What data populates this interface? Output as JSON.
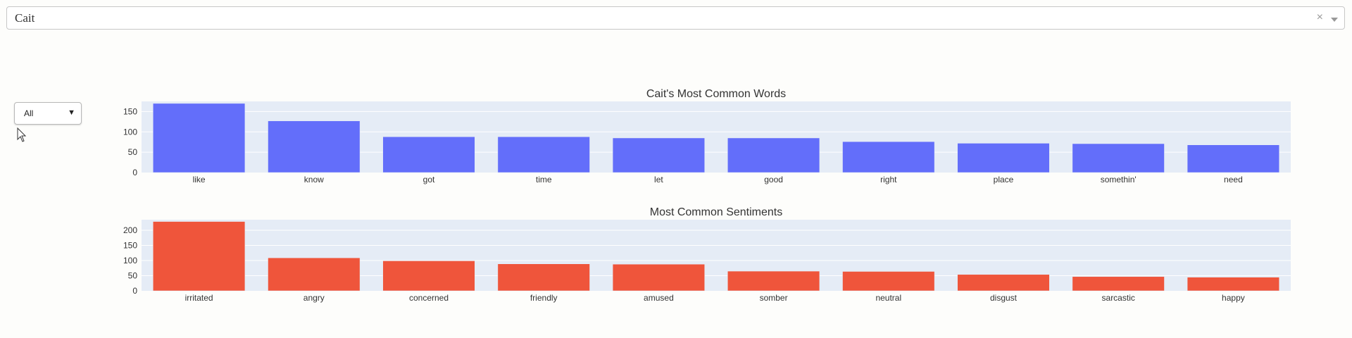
{
  "character_select": {
    "value": "Cait",
    "clear_icon": "×",
    "arrow_icon": "chevron-down-icon"
  },
  "filter_select": {
    "value": "All",
    "arrow": "▼"
  },
  "chart_data": [
    {
      "type": "bar",
      "title": "Cait's Most Common Words",
      "categories": [
        "like",
        "know",
        "got",
        "time",
        "let",
        "good",
        "right",
        "place",
        "somethin'",
        "need"
      ],
      "values": [
        170,
        127,
        88,
        88,
        85,
        85,
        76,
        72,
        71,
        68
      ],
      "ylim": [
        0,
        175
      ],
      "yticks": [
        0,
        50,
        100,
        150
      ],
      "color": "#636efa",
      "grid": true,
      "legend": "none"
    },
    {
      "type": "bar",
      "title": "Most Common Sentiments",
      "categories": [
        "irritated",
        "angry",
        "concerned",
        "friendly",
        "amused",
        "somber",
        "neutral",
        "disgust",
        "sarcastic",
        "happy"
      ],
      "values": [
        229,
        109,
        99,
        89,
        88,
        65,
        64,
        54,
        47,
        45
      ],
      "ylim": [
        0,
        235
      ],
      "yticks": [
        0,
        50,
        100,
        150,
        200
      ],
      "color": "#ef553b",
      "grid": true,
      "legend": "none"
    }
  ]
}
